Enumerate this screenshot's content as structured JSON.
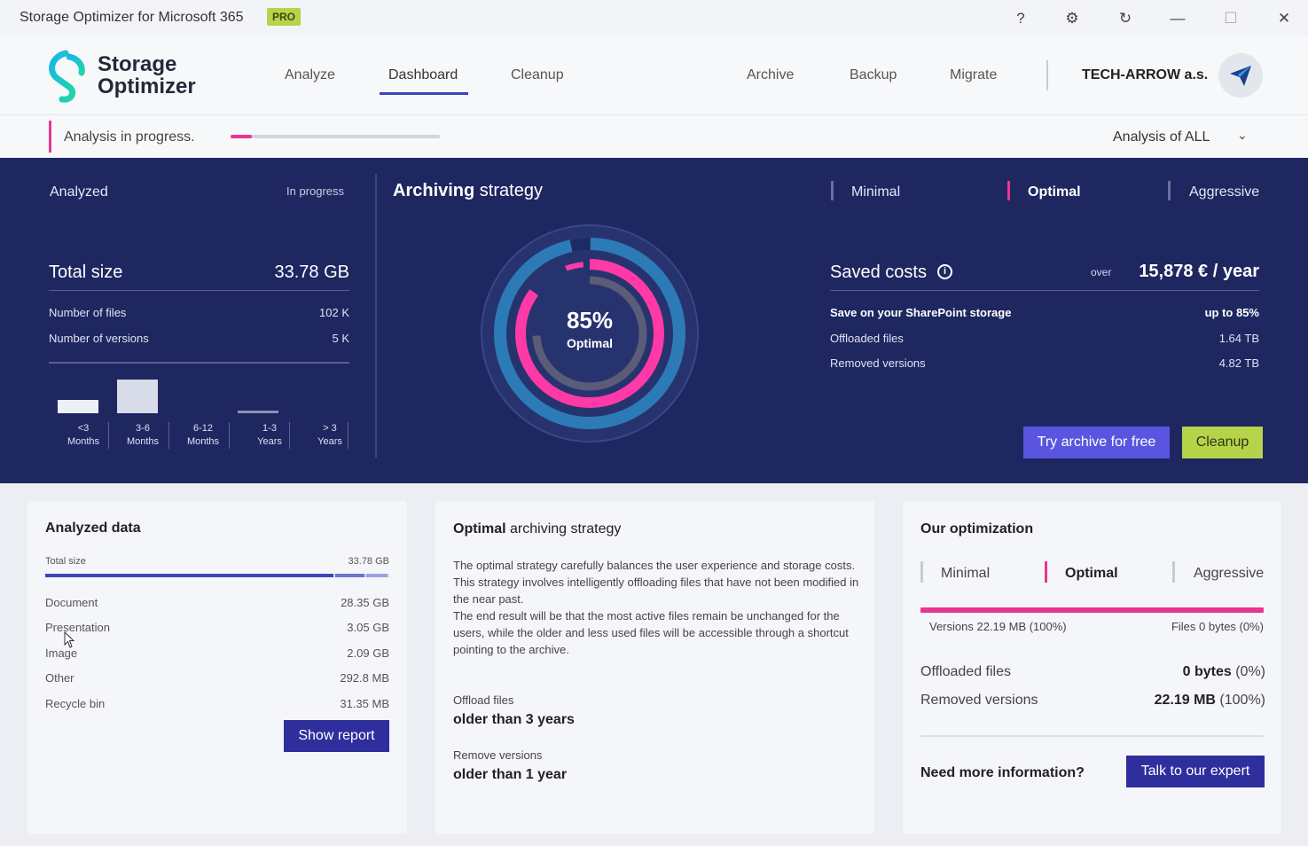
{
  "window": {
    "title": "Storage Optimizer for Microsoft 365",
    "badge": "PRO",
    "controls": {
      "help": "?",
      "settings": "⚙",
      "refresh": "↻",
      "minimize": "—",
      "maximize": "☐",
      "close": "✕"
    }
  },
  "header": {
    "logo_line1": "Storage",
    "logo_line2": "Optimizer",
    "nav_left": [
      "Analyze",
      "Dashboard",
      "Cleanup"
    ],
    "nav_active": "Dashboard",
    "nav_right": [
      "Archive",
      "Backup",
      "Migrate"
    ],
    "company": "TECH-ARROW a.s.",
    "avatar_icon": "paper-plane-icon"
  },
  "progress": {
    "label": "Analysis in progress.",
    "fraction": 0.1,
    "scope": "Analysis of ALL",
    "chevron": "⌄"
  },
  "analyzed": {
    "title": "Analyzed",
    "status": "In progress",
    "total_size_label": "Total size",
    "total_size_value": "33.78 GB",
    "stats": [
      {
        "label": "Number of files",
        "value": "102 K"
      },
      {
        "label": "Number of versions",
        "value": "5 K"
      }
    ],
    "age_buckets": [
      {
        "line1": "<3",
        "line2": "Months"
      },
      {
        "line1": "3-6",
        "line2": "Months"
      },
      {
        "line1": "6-12",
        "line2": "Months"
      },
      {
        "line1": "1-3",
        "line2": "Years"
      },
      {
        "line1": "> 3",
        "line2": "Years"
      }
    ]
  },
  "strategy": {
    "title_bold": "Archiving",
    "title_rest": " strategy",
    "percent": "85%",
    "level_label": "Optimal",
    "levels": [
      "Minimal",
      "Optimal",
      "Aggressive"
    ],
    "active_level": "Optimal",
    "saved_label": "Saved costs",
    "info_icon": "i",
    "over_label": "over",
    "saved_value": "15,878 € / year",
    "rows": [
      {
        "label": "Save on your SharePoint storage",
        "value": "up to 85%",
        "bold": true
      },
      {
        "label": "Offloaded files",
        "value": "1.64 TB",
        "bold": false
      },
      {
        "label": "Removed versions",
        "value": "4.82 TB",
        "bold": false
      }
    ],
    "try_button": "Try archive for free",
    "cleanup_button": "Cleanup"
  },
  "analyzed_data": {
    "title": "Analyzed data",
    "total_label": "Total size",
    "total_value": "33.78 GB",
    "rows": [
      {
        "label": "Document",
        "value": "28.35 GB"
      },
      {
        "label": "Presentation",
        "value": "3.05 GB"
      },
      {
        "label": "Image",
        "value": "2.09 GB"
      },
      {
        "label": "Other",
        "value": "292.8 MB"
      },
      {
        "label": "Recycle bin",
        "value": "31.35 MB"
      }
    ],
    "report_button": "Show report"
  },
  "optimal_card": {
    "title_bold": "Optimal",
    "title_rest": " archiving strategy",
    "description": "The optimal strategy carefully balances the user experience and storage costs. This strategy involves intelligently offloading files that have not been modified in the near past.\nThe end result will be that the most active files remain be unchanged for the users, while the older and less used files will be accessible through a shortcut pointing to the archive.",
    "offload_label": "Offload files",
    "offload_value": "older than 3 years",
    "remove_label": "Remove versions",
    "remove_value": "older than 1 year"
  },
  "our_optimization": {
    "title": "Our optimization",
    "levels": [
      "Minimal",
      "Optimal",
      "Aggressive"
    ],
    "active_level": "Optimal",
    "versions_label": "Versions 22.19 MB (100%)",
    "files_label": "Files 0 bytes (0%)",
    "rows": [
      {
        "label": "Offloaded files",
        "value_bold": "0 bytes",
        "value_rest": " (0%)"
      },
      {
        "label": "Removed versions",
        "value_bold": "22.19 MB",
        "value_rest": " (100%)"
      }
    ],
    "need_info": "Need more information?",
    "expert_button": "Talk to our expert"
  }
}
